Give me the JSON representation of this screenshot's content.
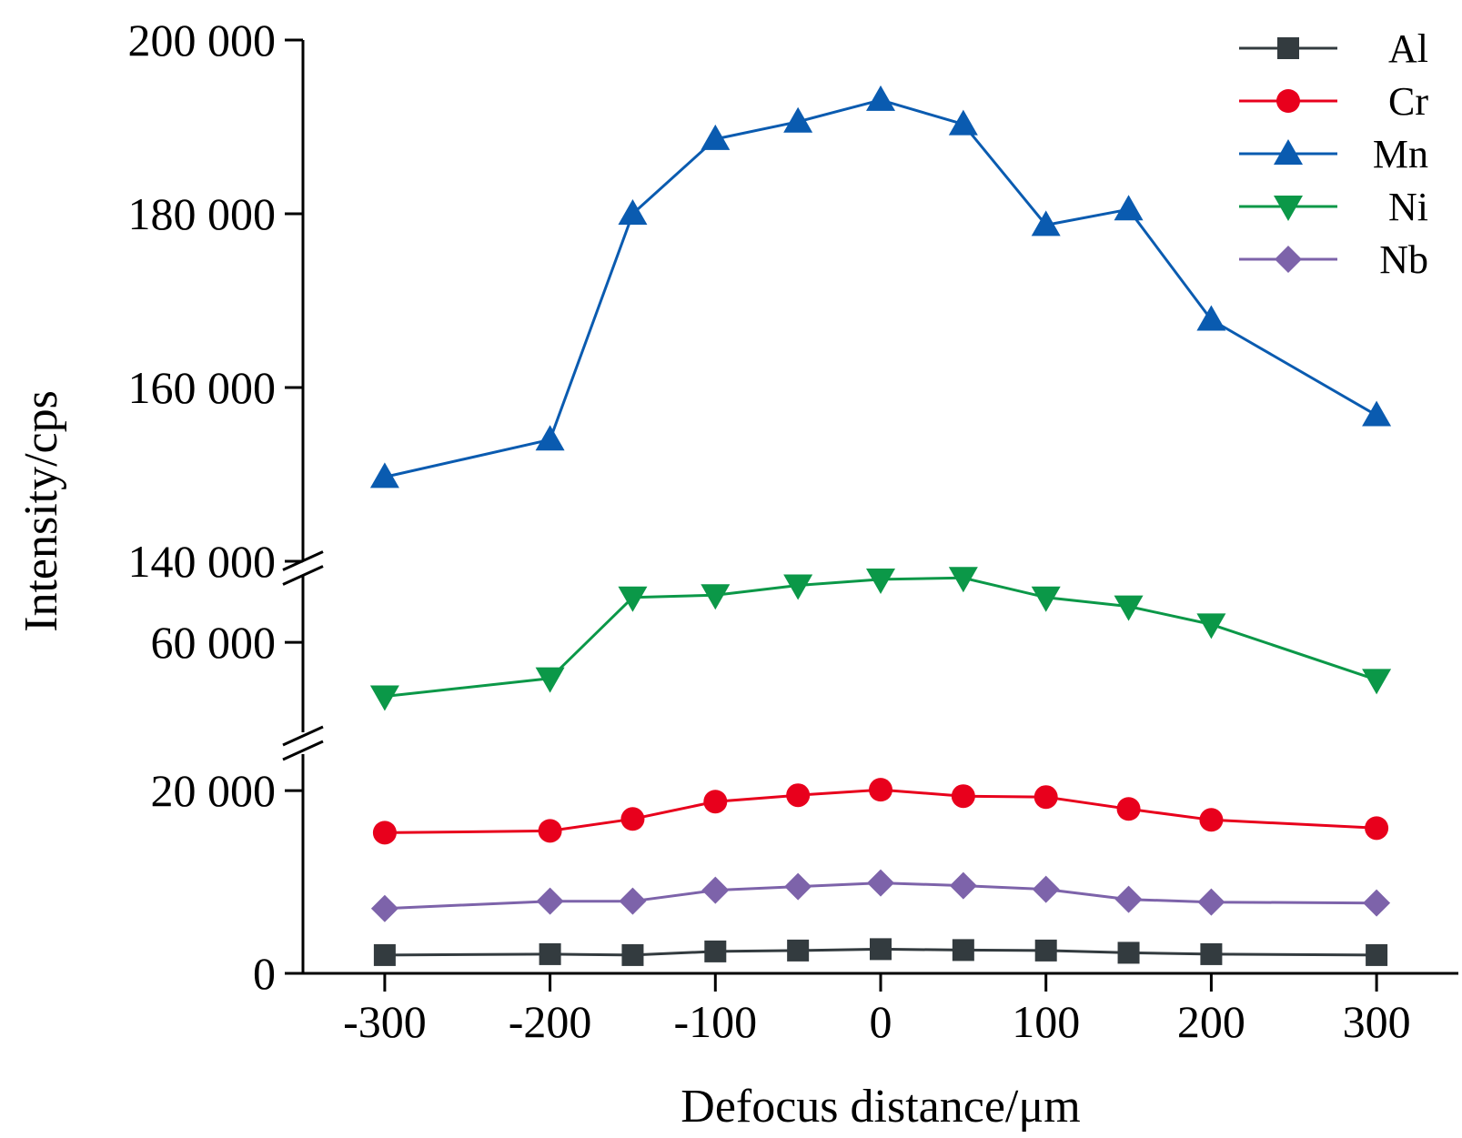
{
  "chart_data": {
    "type": "line",
    "xlabel": "Defocus distance/μm",
    "ylabel": "Intensity/cps",
    "x": [
      -300,
      -200,
      -150,
      -100,
      -50,
      0,
      50,
      100,
      150,
      200,
      300
    ],
    "x_ticks": [
      -300,
      -200,
      -100,
      0,
      100,
      200,
      300
    ],
    "x_tick_labels": [
      "-300",
      "-200",
      "-100",
      "0",
      "100",
      "200",
      "300"
    ],
    "xlim": [
      -350,
      350
    ],
    "y_axis_breaks": true,
    "y_segments": [
      {
        "range": [
          0,
          24000
        ],
        "ticks": [
          0,
          20000
        ],
        "tick_labels": [
          "0",
          "20 000"
        ]
      },
      {
        "range": [
          48000,
          69000
        ],
        "ticks": [
          60000
        ],
        "tick_labels": [
          "60 000"
        ]
      },
      {
        "range": [
          140000,
          200000
        ],
        "ticks": [
          140000,
          160000,
          180000,
          200000
        ],
        "tick_labels": [
          "140 000",
          "160 000",
          "180 000",
          "200 000"
        ]
      }
    ],
    "legend_position": "top-right",
    "grid": false,
    "series": [
      {
        "name": "Al",
        "color": "#333b3f",
        "marker": "square",
        "values": [
          2000,
          2100,
          2000,
          2400,
          2500,
          2650,
          2550,
          2500,
          2250,
          2100,
          2000
        ]
      },
      {
        "name": "Cr",
        "color": "#e8001c",
        "marker": "circle",
        "values": [
          15400,
          15600,
          16900,
          18800,
          19500,
          20100,
          19400,
          19300,
          18000,
          16800,
          15900
        ]
      },
      {
        "name": "Mn",
        "color": "#0a5bb0",
        "marker": "triangle-up",
        "values": [
          149700,
          154000,
          180000,
          188600,
          190600,
          193100,
          190300,
          178700,
          180500,
          167800,
          156800
        ]
      },
      {
        "name": "Ni",
        "color": "#0b9848",
        "marker": "triangle-down",
        "values": [
          52800,
          55200,
          66000,
          66300,
          67600,
          68400,
          68600,
          66000,
          64800,
          62400,
          55000
        ]
      },
      {
        "name": "Nb",
        "color": "#7d63aa",
        "marker": "diamond",
        "values": [
          7100,
          7900,
          7900,
          9100,
          9500,
          9900,
          9600,
          9200,
          8100,
          7800,
          7700
        ]
      }
    ]
  }
}
